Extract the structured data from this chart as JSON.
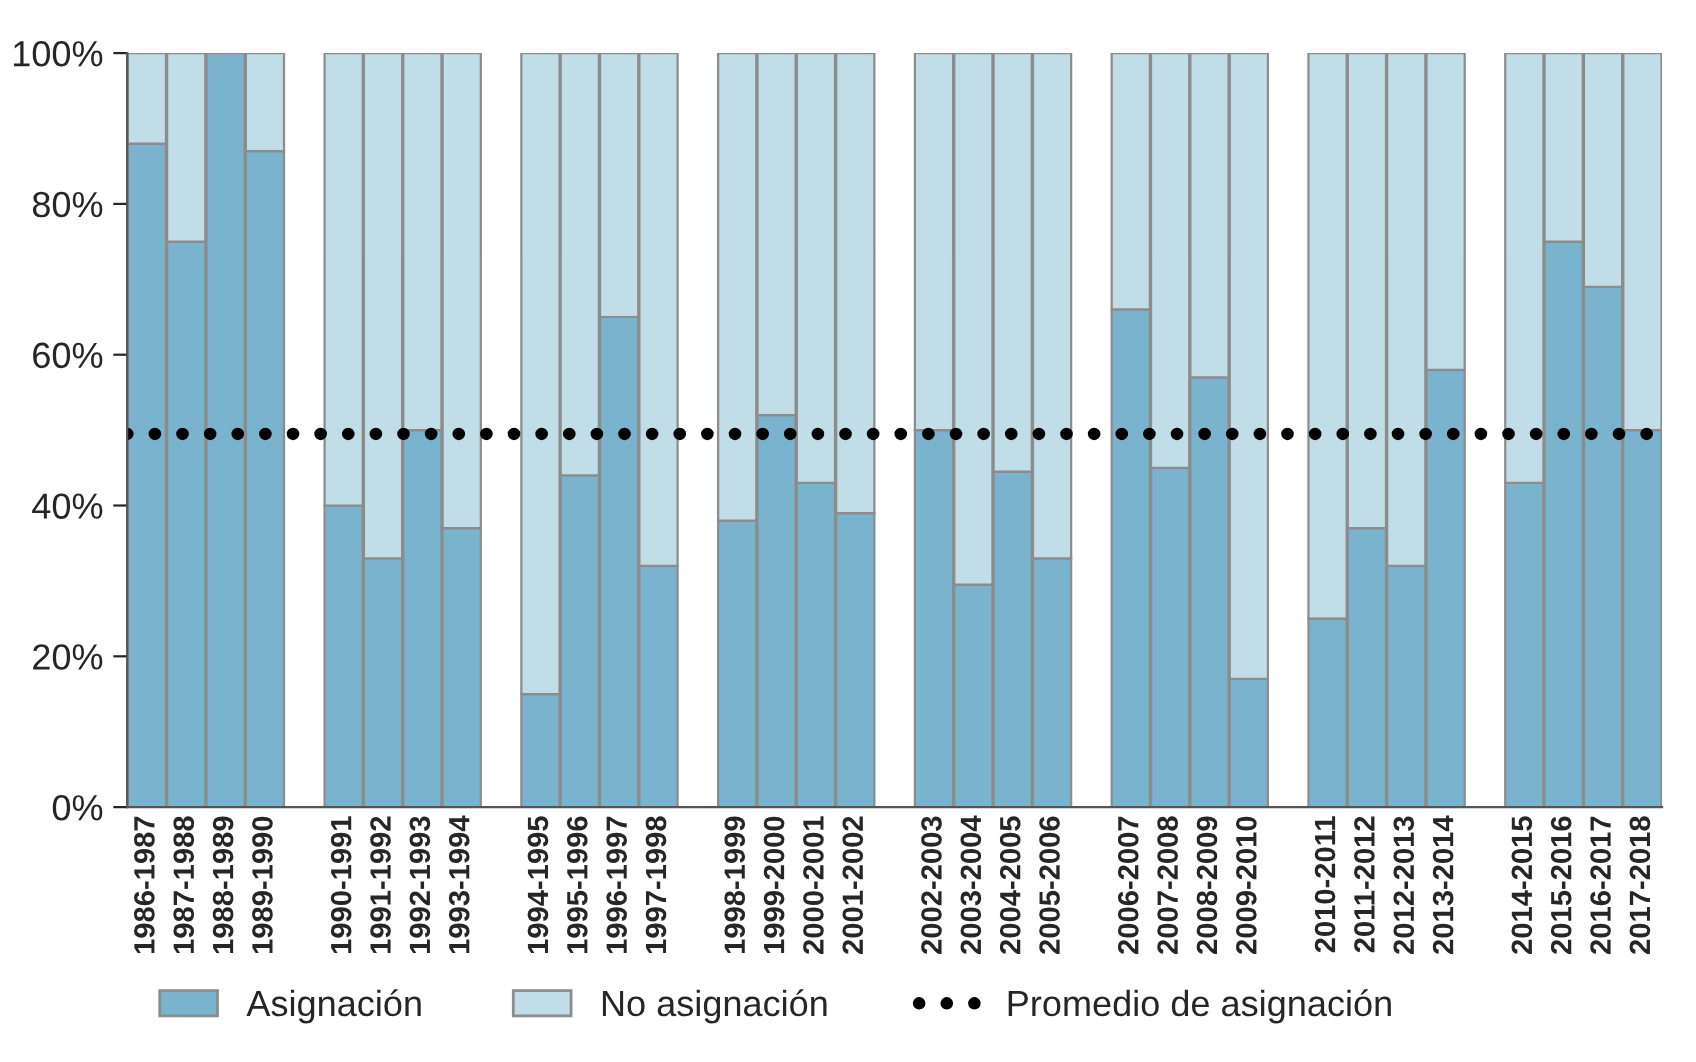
{
  "chart_data": {
    "type": "bar",
    "stacked": true,
    "categories": [
      "1986-1987",
      "1987-1988",
      "1988-1989",
      "1989-1990",
      null,
      "1990-1991",
      "1991-1992",
      "1992-1993",
      "1993-1994",
      null,
      "1994-1995",
      "1995-1996",
      "1996-1997",
      "1997-1998",
      null,
      "1998-1999",
      "1999-2000",
      "2000-2001",
      "2001-2002",
      null,
      "2002-2003",
      "2003-2004",
      "2004-2005",
      "2005-2006",
      null,
      "2006-2007",
      "2007-2008",
      "2008-2009",
      "2009-2010",
      null,
      "2010-2011",
      "2011-2012",
      "2012-2013",
      "2013-2014",
      null,
      "2014-2015",
      "2015-2016",
      "2016-2017",
      "2017-2018"
    ],
    "series": [
      {
        "name": "Asignación",
        "color": "#7ab3cd",
        "values": [
          88,
          75,
          100,
          87,
          null,
          40,
          33,
          50,
          37,
          null,
          15,
          44,
          65,
          32,
          null,
          38,
          52,
          43,
          39,
          null,
          50,
          29.5,
          44.5,
          33,
          null,
          66,
          45,
          57,
          17,
          null,
          25,
          37,
          32,
          58,
          null,
          43,
          75,
          69,
          50
        ]
      },
      {
        "name": "No asignación",
        "color": "#c0dde8",
        "values": [
          12,
          25,
          null,
          13,
          null,
          60,
          67,
          50,
          63,
          null,
          85,
          56,
          35,
          68,
          null,
          62,
          48,
          57,
          61,
          null,
          50,
          70.5,
          55.5,
          67,
          null,
          34,
          55,
          43,
          83,
          null,
          75,
          63,
          68,
          42,
          null,
          57,
          25,
          31,
          50
        ]
      }
    ],
    "ylim": [
      0,
      100
    ],
    "yticks": [
      {
        "value": 0,
        "label": "0%"
      },
      {
        "value": 20,
        "label": "20%"
      },
      {
        "value": 40,
        "label": "40%"
      },
      {
        "value": 60,
        "label": "60%"
      },
      {
        "value": 80,
        "label": "80%"
      },
      {
        "value": 100,
        "label": "100%"
      }
    ],
    "ref_lines": [
      {
        "axis": "y",
        "value": 49.5,
        "label": "Promedio de asignación",
        "color": "#000000",
        "line_style": "dotted"
      }
    ],
    "grid": false,
    "legend": "bottom"
  }
}
